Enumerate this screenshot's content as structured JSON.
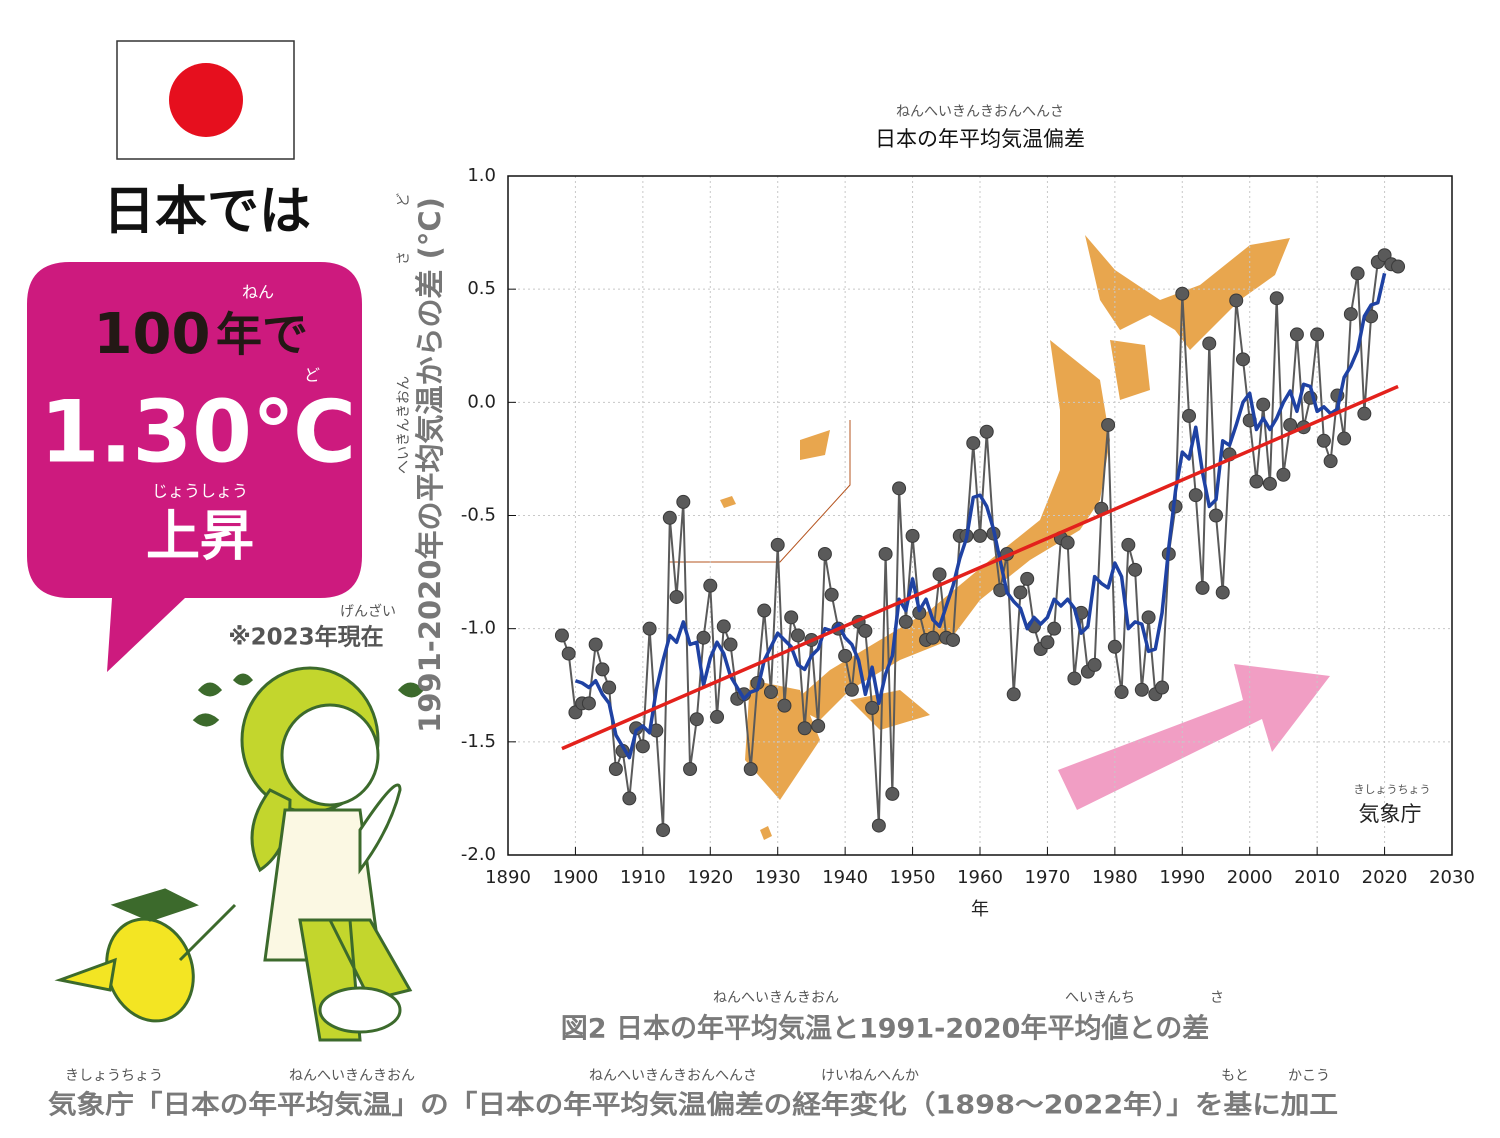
{
  "infographic": {
    "heading": "日本では",
    "number": "100",
    "unit": "年で",
    "unit_ruby": "ねん",
    "degree_ruby": "ど",
    "rise": "1.30℃",
    "verb": "上昇",
    "verb_ruby": "じょうしょう",
    "note": "※2023年現在",
    "note_ruby": "げんざい"
  },
  "chart_data": {
    "type": "line",
    "title": "日本の年平均気温偏差",
    "title_ruby": "ねんへいきんきおんへんさ",
    "x_label": "年",
    "y_label": "1991-2020年の平均気温からの差 (°C)",
    "y_label_rubies": [
      "へいきんきおん",
      "さ",
      "ど"
    ],
    "annotation": "気象庁",
    "annotation_ruby": "きしょうちょう",
    "xlim": [
      1890,
      2030
    ],
    "xticks": [
      1890,
      1900,
      1910,
      1920,
      1930,
      1940,
      1950,
      1960,
      1970,
      1980,
      1990,
      2000,
      2010,
      2020,
      2030
    ],
    "ylim": [
      -2.0,
      1.0
    ],
    "yticks": [
      {
        "value": 1.0,
        "label": "1.0"
      },
      0.5,
      {
        "value": 0.0,
        "label": "0.0"
      },
      -0.5,
      {
        "value": -1.0,
        "label": "-1.0"
      },
      -1.5,
      {
        "value": -2.0,
        "label": "-2.0"
      }
    ],
    "grid": true,
    "series": [
      {
        "color": "#5a5a5a",
        "markers": true,
        "x": [
          1898,
          1899,
          1900,
          1901,
          1902,
          1903,
          1904,
          1905,
          1906,
          1907,
          1908,
          1909,
          1910,
          1911,
          1912,
          1913,
          1914,
          1915,
          1916,
          1917,
          1918,
          1919,
          1920,
          1921,
          1922,
          1923,
          1924,
          1925,
          1926,
          1927,
          1928,
          1929,
          1930,
          1931,
          1932,
          1933,
          1934,
          1935,
          1936,
          1937,
          1938,
          1939,
          1940,
          1941,
          1942,
          1943,
          1944,
          1945,
          1946,
          1947,
          1948,
          1949,
          1950,
          1951,
          1952,
          1953,
          1954,
          1955,
          1956,
          1957,
          1958,
          1959,
          1960,
          1961,
          1962,
          1963,
          1964,
          1965,
          1966,
          1967,
          1968,
          1969,
          1970,
          1971,
          1972,
          1973,
          1974,
          1975,
          1976,
          1977,
          1978,
          1979,
          1980,
          1981,
          1982,
          1983,
          1984,
          1985,
          1986,
          1987,
          1988,
          1989,
          1990,
          1991,
          1992,
          1993,
          1994,
          1995,
          1996,
          1997,
          1998,
          1999,
          2000,
          2001,
          2002,
          2003,
          2004,
          2005,
          2006,
          2007,
          2008,
          2009,
          2010,
          2011,
          2012,
          2013,
          2014,
          2015,
          2016,
          2017,
          2018,
          2019,
          2020,
          2021,
          2022
        ],
        "values": [
          -1.03,
          -1.11,
          -1.37,
          -1.33,
          -1.33,
          -1.07,
          -1.18,
          -1.26,
          -1.62,
          -1.54,
          -1.75,
          -1.44,
          -1.52,
          -1.0,
          -1.45,
          -1.89,
          -0.51,
          -0.86,
          -0.44,
          -1.62,
          -1.4,
          -1.04,
          -0.81,
          -1.39,
          -0.99,
          -1.07,
          -1.31,
          -1.29,
          -1.62,
          -1.24,
          -0.92,
          -1.28,
          -0.63,
          -1.34,
          -0.95,
          -1.03,
          -1.44,
          -1.05,
          -1.43,
          -0.67,
          -0.85,
          -1.0,
          -1.12,
          -1.27,
          -0.97,
          -1.01,
          -1.35,
          -1.87,
          -0.67,
          -1.73,
          -0.38,
          -0.97,
          -0.59,
          -0.93,
          -1.05,
          -1.04,
          -0.76,
          -1.04,
          -1.05,
          -0.59,
          -0.59,
          -0.18,
          -0.59,
          -0.13,
          -0.58,
          -0.83,
          -0.67,
          -1.29,
          -0.84,
          -0.78,
          -0.99,
          -1.09,
          -1.06,
          -1.0,
          -0.6,
          -0.62,
          -1.22,
          -0.93,
          -1.19,
          -1.16,
          -0.47,
          -0.1,
          -1.08,
          -1.28,
          -0.63,
          -0.74,
          -1.27,
          -0.95,
          -1.29,
          -1.26,
          -0.67,
          -0.46,
          0.48,
          -0.06,
          -0.41,
          -0.82,
          0.26,
          -0.5,
          -0.84,
          -0.23,
          0.45,
          0.19,
          -0.08,
          -0.35,
          -0.01,
          -0.36,
          0.46,
          -0.32,
          -0.1,
          0.3,
          -0.11,
          0.02,
          0.3,
          -0.17,
          -0.26,
          0.03,
          -0.16,
          0.39,
          0.57,
          -0.05,
          0.38,
          0.62,
          0.65,
          0.61,
          0.6
        ]
      },
      {
        "color": "#1f42a3",
        "markers": false,
        "x": [
          1900,
          1901,
          1902,
          1903,
          1904,
          1905,
          1906,
          1907,
          1908,
          1909,
          1910,
          1911,
          1912,
          1913,
          1914,
          1915,
          1916,
          1917,
          1918,
          1919,
          1920,
          1921,
          1922,
          1923,
          1924,
          1925,
          1926,
          1927,
          1928,
          1929,
          1930,
          1931,
          1932,
          1933,
          1934,
          1935,
          1936,
          1937,
          1938,
          1939,
          1940,
          1941,
          1942,
          1943,
          1944,
          1945,
          1946,
          1947,
          1948,
          1949,
          1950,
          1951,
          1952,
          1953,
          1954,
          1955,
          1956,
          1957,
          1958,
          1959,
          1960,
          1961,
          1962,
          1963,
          1964,
          1965,
          1966,
          1967,
          1968,
          1969,
          1970,
          1971,
          1972,
          1973,
          1974,
          1975,
          1976,
          1977,
          1978,
          1979,
          1980,
          1981,
          1982,
          1983,
          1984,
          1985,
          1986,
          1987,
          1988,
          1989,
          1990,
          1991,
          1992,
          1993,
          1994,
          1995,
          1996,
          1997,
          1998,
          1999,
          2000,
          2001,
          2002,
          2003,
          2004,
          2005,
          2006,
          2007,
          2008,
          2009,
          2010,
          2011,
          2012,
          2013,
          2014,
          2015,
          2016,
          2017,
          2018,
          2019,
          2020
        ],
        "values": [
          -1.23,
          -1.24,
          -1.26,
          -1.23,
          -1.29,
          -1.33,
          -1.47,
          -1.52,
          -1.57,
          -1.45,
          -1.43,
          -1.46,
          -1.27,
          -1.14,
          -1.03,
          -1.06,
          -0.97,
          -1.07,
          -1.06,
          -1.25,
          -1.13,
          -1.06,
          -1.11,
          -1.21,
          -1.26,
          -1.31,
          -1.28,
          -1.27,
          -1.14,
          -1.08,
          -1.02,
          -1.05,
          -1.08,
          -1.16,
          -1.18,
          -1.12,
          -1.09,
          -1.0,
          -1.01,
          -0.98,
          -1.04,
          -1.07,
          -1.14,
          -1.29,
          -1.17,
          -1.33,
          -1.2,
          -1.12,
          -0.87,
          -0.92,
          -0.78,
          -0.92,
          -0.87,
          -0.96,
          -0.99,
          -0.9,
          -0.81,
          -0.69,
          -0.6,
          -0.42,
          -0.41,
          -0.46,
          -0.56,
          -0.7,
          -0.84,
          -0.88,
          -0.91,
          -1.0,
          -0.95,
          -0.98,
          -0.95,
          -0.87,
          -0.9,
          -0.87,
          -0.91,
          -1.02,
          -0.99,
          -0.77,
          -0.8,
          -0.82,
          -0.71,
          -0.77,
          -1.0,
          -0.97,
          -0.98,
          -1.1,
          -1.09,
          -0.93,
          -0.64,
          -0.39,
          -0.22,
          -0.25,
          -0.11,
          -0.31,
          -0.46,
          -0.43,
          -0.17,
          -0.19,
          -0.1,
          0.0,
          0.04,
          -0.12,
          -0.07,
          -0.12,
          -0.07,
          0.0,
          0.05,
          -0.04,
          0.08,
          0.07,
          -0.04,
          -0.02,
          -0.05,
          -0.03,
          0.11,
          0.16,
          0.23,
          0.38,
          0.43,
          0.44,
          0.57
        ]
      },
      {
        "color": "#e3211c",
        "markers": false,
        "x": [
          1898,
          2022
        ],
        "values": [
          -1.53,
          0.07
        ]
      }
    ]
  },
  "caption": {
    "text": "図2 日本の年平均気温と1991-2020年平均値との差",
    "rubies": [
      "ねんへいきんきおん",
      "へいきんち",
      "さ"
    ]
  },
  "source": {
    "text": "気象庁「日本の年平均気温」の「日本の年平均気温偏差の経年変化（1898〜2022年）」を基に加工",
    "rubies": [
      "きしょうちょう",
      "ねんへいきんきおん",
      "ねんへいきんきおんへんさ",
      "けいねんへんか",
      "もと",
      "かこう"
    ]
  }
}
